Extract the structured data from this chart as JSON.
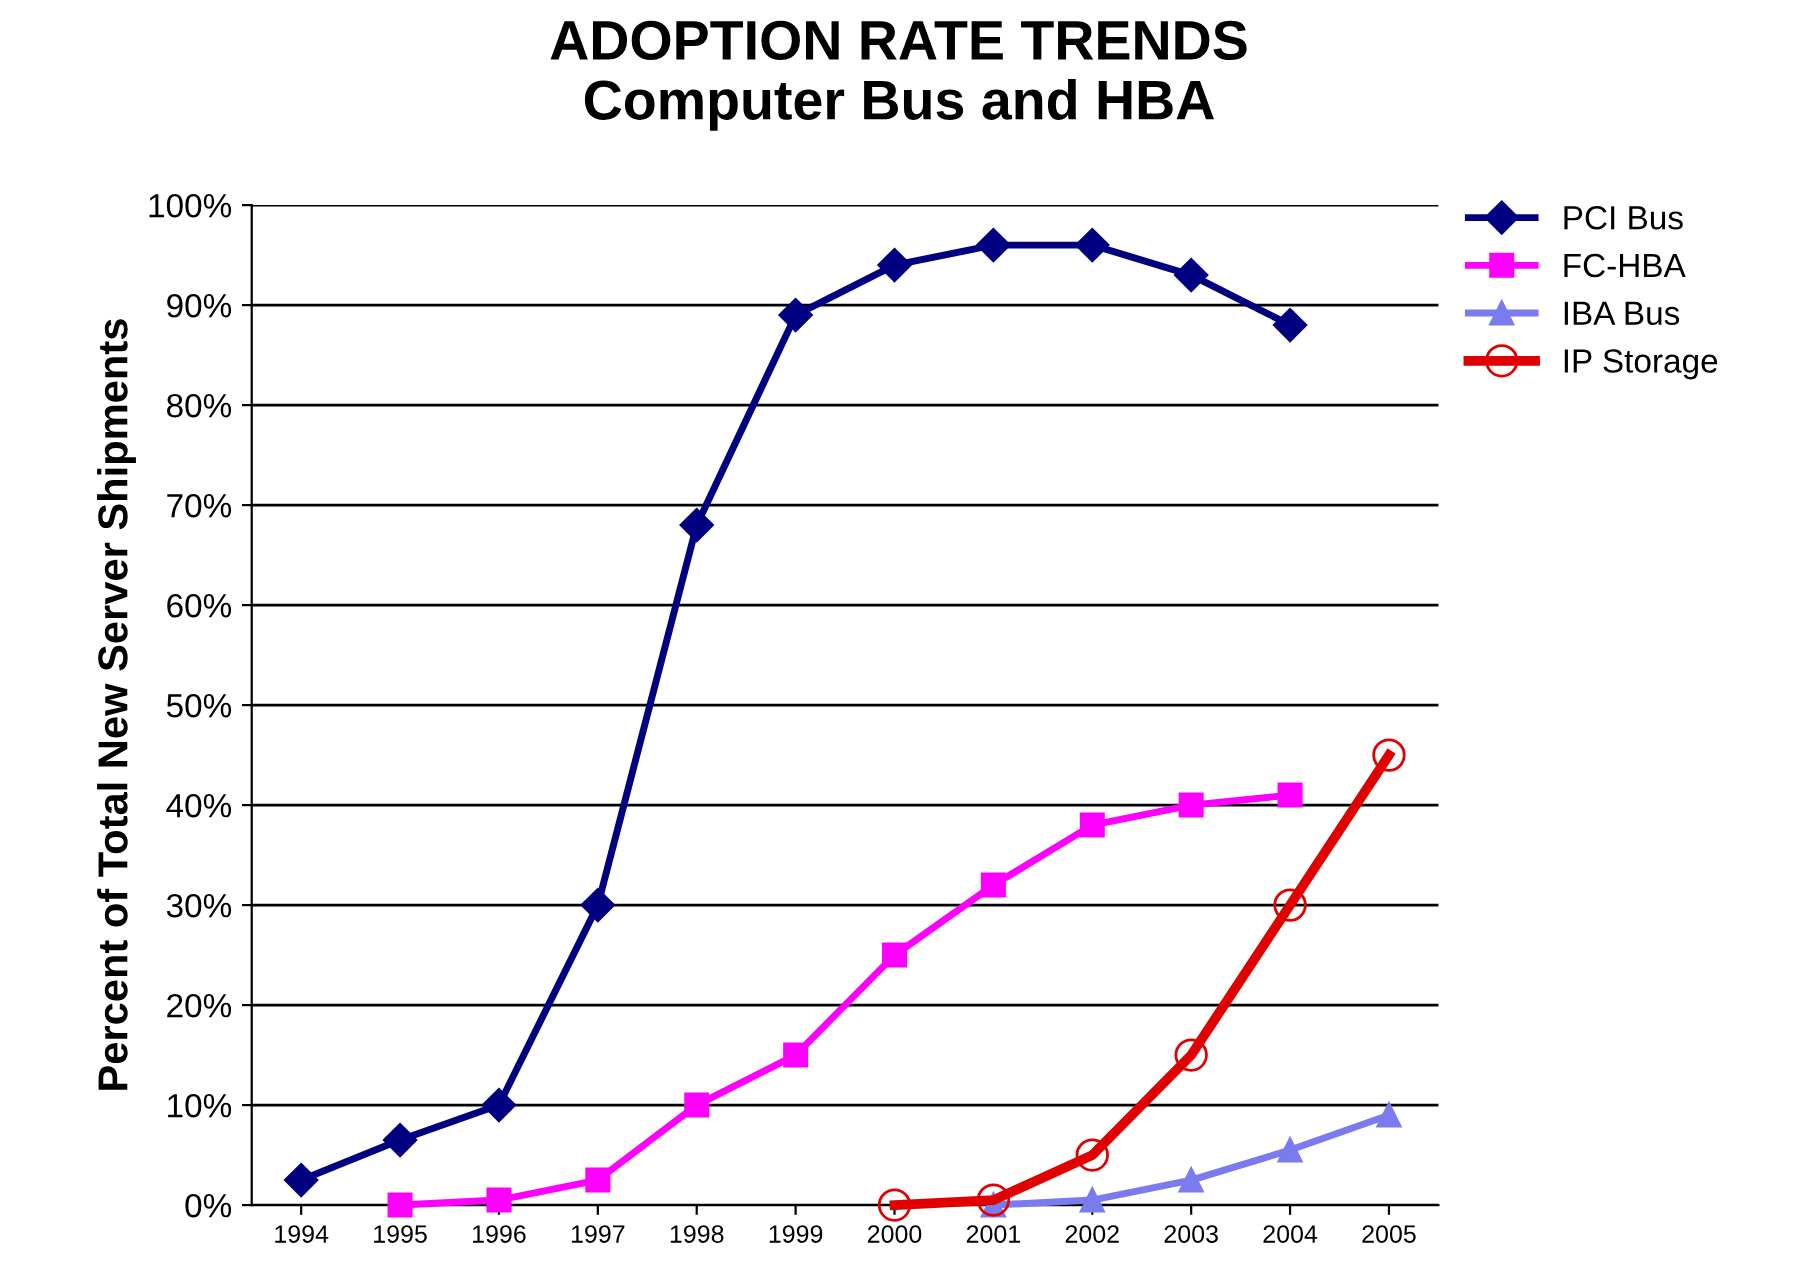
{
  "chart_data": {
    "type": "line",
    "title": "ADOPTION RATE TRENDS\nComputer Bus and HBA",
    "ylabel": "Percent of Total New Server Shipments",
    "categories": [
      "1994",
      "1995",
      "1996",
      "1997",
      "1998",
      "1999",
      "2000",
      "2001",
      "2002",
      "2003",
      "2004",
      "2005"
    ],
    "series": [
      {
        "name": "PCI Bus",
        "color": "#000080",
        "marker": "diamond",
        "values": [
          2.5,
          6.5,
          10,
          30,
          68,
          89,
          94,
          96,
          96,
          93,
          88,
          null
        ]
      },
      {
        "name": "FC-HBA",
        "color": "#ff00ff",
        "marker": "square",
        "values": [
          null,
          0,
          0.5,
          2.5,
          10,
          15,
          25,
          32,
          38,
          40,
          41,
          null
        ]
      },
      {
        "name": "IBA Bus",
        "color": "#7b7bf0",
        "marker": "triangle",
        "values": [
          null,
          null,
          null,
          null,
          null,
          null,
          null,
          0,
          0.5,
          2.5,
          5.5,
          9
        ]
      },
      {
        "name": "IP Storage",
        "color": "#e00000",
        "marker": "circle",
        "values": [
          null,
          null,
          null,
          null,
          null,
          null,
          0,
          0.5,
          5,
          15,
          30,
          45
        ]
      }
    ],
    "ylim": [
      0,
      100
    ],
    "yticks": [
      {
        "value": 0,
        "label": "0%"
      },
      {
        "value": 10,
        "label": "10%"
      },
      {
        "value": 20,
        "label": "20%"
      },
      {
        "value": 30,
        "label": "30%"
      },
      {
        "value": 40,
        "label": "40%"
      },
      {
        "value": 50,
        "label": "50%"
      },
      {
        "value": 60,
        "label": "60%"
      },
      {
        "value": 70,
        "label": "70%"
      },
      {
        "value": 80,
        "label": "80%"
      },
      {
        "value": 90,
        "label": "90%"
      },
      {
        "value": 100,
        "label": "100%"
      }
    ],
    "grid": "y",
    "legend": "top right",
    "line_style": "solid"
  }
}
